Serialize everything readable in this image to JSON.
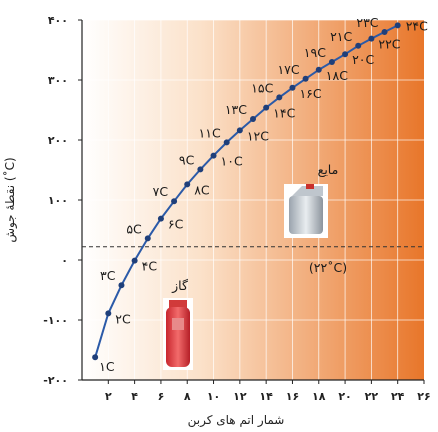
{
  "chart_data": {
    "type": "line",
    "xlabel": "شمار اتم های کربن",
    "ylabel": "نقطهٔ جوش (˚C)",
    "xlim": [
      0,
      26
    ],
    "ylim": [
      -200,
      400
    ],
    "x_ticks": [
      2,
      4,
      6,
      8,
      10,
      12,
      14,
      16,
      18,
      20,
      22,
      24,
      26
    ],
    "x_tick_labels": [
      "۲",
      "۴",
      "۶",
      "۸",
      "۱۰",
      "۱۲",
      "۱۴",
      "۱۶",
      "۱۸",
      "۲۰",
      "۲۲",
      "۲۴",
      "۲۶"
    ],
    "y_ticks": [
      -200,
      -100,
      0,
      100,
      200,
      300,
      400
    ],
    "y_tick_labels": [
      "-۲۰۰",
      "-۱۰۰",
      "۰",
      "۱۰۰",
      "۲۰۰",
      "۳۰۰",
      "۴۰۰"
    ],
    "grid": true,
    "series": [
      {
        "x": [
          1,
          2,
          3,
          4,
          5,
          6,
          7,
          8,
          9,
          10,
          11,
          12,
          13,
          14,
          15,
          16,
          17,
          18,
          19,
          20,
          21,
          22,
          23,
          24
        ],
        "y": [
          -162,
          -89,
          -42,
          -1,
          36,
          69,
          98,
          126,
          151,
          174,
          196,
          216,
          235,
          254,
          271,
          287,
          302,
          317,
          330,
          343,
          357,
          369,
          380,
          391
        ],
        "point_labels": [
          "۱C",
          "۲C",
          "۳C",
          "۴C",
          "۵C",
          "۶C",
          "۷C",
          "۸C",
          "۹C",
          "۱۰C",
          "۱۱C",
          "۱۲C",
          "۱۳C",
          "۱۴C",
          "۱۵C",
          "۱۶C",
          "۱۷C",
          "۱۸C",
          "۱۹C",
          "۲۰C",
          "۲۱C",
          "۲۲C",
          "۲۳C",
          "۲۴C"
        ],
        "color": "#2b5aa8"
      }
    ],
    "reference_line": {
      "y": 22,
      "label": "(۲۲˚C)"
    },
    "region_labels": {
      "liquid": "مایع",
      "gas": "گاز"
    },
    "background_gradient": [
      "#ffffff",
      "#e8762a"
    ]
  }
}
